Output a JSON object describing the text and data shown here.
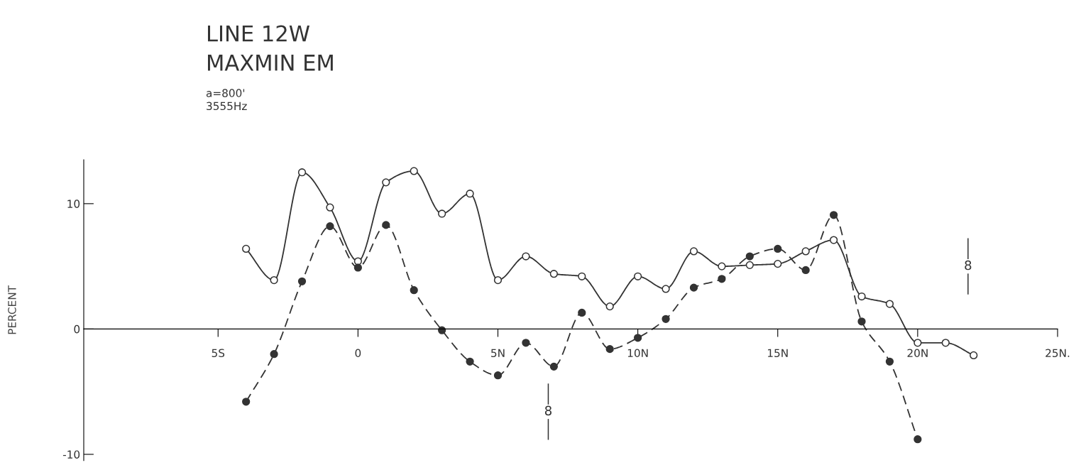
{
  "chart_data": {
    "type": "line",
    "title": "LINE 12W\nMAXMIN EM",
    "subtitle": "a=800'\n3555Hz",
    "ylabel": "PERCENT",
    "x": [
      -4,
      -3,
      -2,
      -1,
      0,
      1,
      2,
      3,
      4,
      5,
      6,
      7,
      8,
      9,
      10,
      11,
      12,
      13,
      14,
      15,
      16,
      17,
      18,
      19,
      20,
      21,
      22
    ],
    "series": [
      {
        "color": "#333333",
        "line_style": "solid",
        "marker": "circle",
        "values": [
          6.4,
          3.9,
          12.5,
          9.7,
          5.4,
          11.7,
          12.6,
          9.2,
          10.8,
          3.9,
          5.8,
          4.4,
          4.2,
          1.8,
          4.2,
          3.2,
          6.2,
          5.0,
          5.1,
          5.2,
          6.2,
          7.1,
          2.6,
          2.0,
          -1.1,
          -1.1,
          -2.1
        ]
      },
      {
        "color": "#333333",
        "line_style": "dashed",
        "marker": "circle",
        "x": [
          -4,
          -3,
          -2,
          -1,
          0,
          1,
          2,
          3,
          4,
          5,
          6,
          7,
          8,
          9,
          10,
          11,
          12,
          13,
          14,
          15,
          16,
          17,
          18,
          19,
          20
        ],
        "values": [
          -5.8,
          -2.0,
          3.8,
          8.2,
          4.9,
          8.3,
          3.1,
          -0.1,
          -2.6,
          -3.7,
          -1.1,
          -3.0,
          1.3,
          -1.6,
          -0.7,
          0.8,
          3.3,
          4.0,
          5.8,
          6.4,
          4.7,
          9.1,
          0.6,
          -2.6,
          -8.8
        ]
      }
    ],
    "xlim": [
      -9.8,
      25
    ],
    "ylim": [
      -10.5,
      13.5
    ],
    "xticks": [
      {
        "value": -5,
        "label": "5S"
      },
      0,
      {
        "value": 5,
        "label": "5N"
      },
      {
        "value": 10,
        "label": "10N"
      },
      {
        "value": 15,
        "label": "15N"
      },
      {
        "value": 20,
        "label": "20N"
      },
      {
        "value": 25,
        "label": "25N."
      }
    ],
    "yticks": [
      {
        "value": -10,
        "label": "-10"
      },
      0,
      10
    ],
    "annotations": [
      {
        "text": "8",
        "x": 6.8,
        "y": -6.6
      },
      {
        "text": "8",
        "x": 21.8,
        "y": 5.0
      }
    ],
    "grid": false,
    "legend": false
  }
}
